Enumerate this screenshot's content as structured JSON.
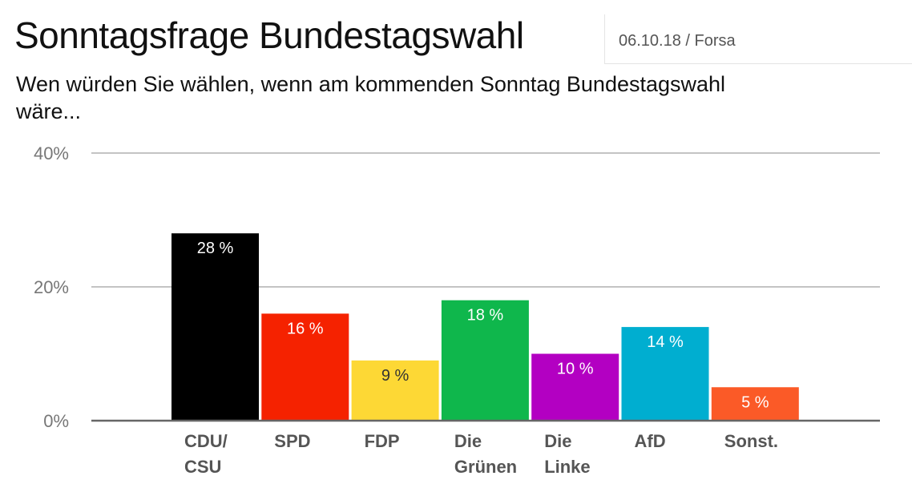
{
  "header": {
    "title": "Sonntagsfrage Bundestagswahl",
    "meta": "06.10.18 / Forsa",
    "subtitle": "Wen würden Sie wählen, wenn am kommenden Sonntag Bundestagswahl wäre..."
  },
  "chart_data": {
    "type": "bar",
    "title": "Sonntagsfrage Bundestagswahl",
    "subtitle": "Wen würden Sie wählen, wenn am kommenden Sonntag Bundestagswahl wäre...",
    "xlabel": "",
    "ylabel": "",
    "ylim": [
      0,
      40
    ],
    "yticks": [
      "0%",
      "20%",
      "40%"
    ],
    "grid": true,
    "categories": [
      {
        "label": [
          "CDU/",
          "CSU"
        ],
        "value": 28,
        "label_text": "28 %",
        "color": "#000000",
        "label_color": "#ffffff"
      },
      {
        "label": [
          "SPD"
        ],
        "value": 16,
        "label_text": "16 %",
        "color": "#f52200",
        "label_color": "#ffffff"
      },
      {
        "label": [
          "FDP"
        ],
        "value": 9,
        "label_text": "9 %",
        "color": "#fdd835",
        "label_color": "#333333"
      },
      {
        "label": [
          "Die",
          "Grünen"
        ],
        "value": 18,
        "label_text": "18 %",
        "color": "#0fb74c",
        "label_color": "#ffffff"
      },
      {
        "label": [
          "Die",
          "Linke"
        ],
        "value": 10,
        "label_text": "10 %",
        "color": "#b300c2",
        "label_color": "#ffffff"
      },
      {
        "label": [
          "AfD"
        ],
        "value": 14,
        "label_text": "14 %",
        "color": "#00aed0",
        "label_color": "#ffffff"
      },
      {
        "label": [
          "Sonst."
        ],
        "value": 5,
        "label_text": "5 %",
        "color": "#fb5a27",
        "label_color": "#ffffff"
      }
    ]
  }
}
